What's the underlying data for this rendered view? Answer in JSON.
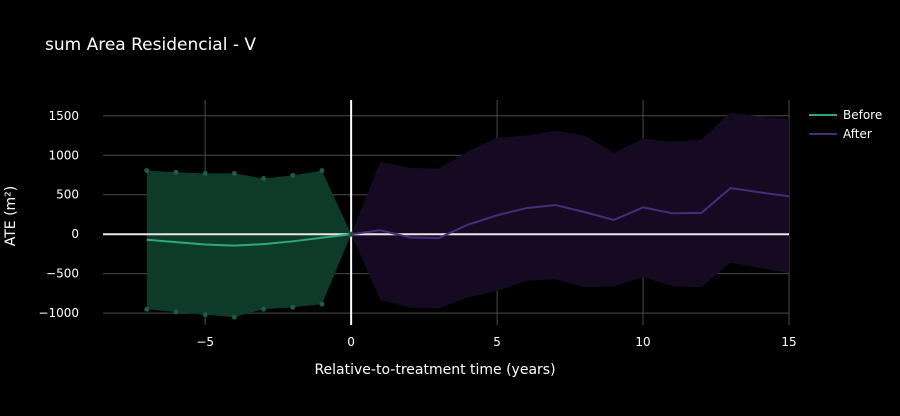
{
  "chart_data": {
    "type": "line",
    "title": "sum Area Residencial - V",
    "xlabel": "Relative-to-treatment time (years)",
    "ylabel": "ATE (m²)",
    "xlim": [
      -8.5,
      15
    ],
    "ylim": [
      -1150,
      1700
    ],
    "x_ticks": [
      -5,
      0,
      5,
      10,
      15
    ],
    "x_tick_labels": [
      "−5",
      "0",
      "5",
      "10",
      "15"
    ],
    "y_ticks": [
      -1000,
      -500,
      0,
      500,
      1000,
      1500
    ],
    "y_tick_labels": [
      "−1000",
      "−500",
      "0",
      "500",
      "1000",
      "1500"
    ],
    "grid": true,
    "legend_position": "top-right",
    "treatment_line_x": 0,
    "series": [
      {
        "name": "Before",
        "color": "#2ca87a",
        "fill_color": "#0e3a2a",
        "x": [
          -7,
          -6,
          -5,
          -4,
          -3,
          -2,
          -1,
          0
        ],
        "y": [
          -70,
          -100,
          -130,
          -145,
          -125,
          -90,
          -45,
          0
        ],
        "upper": [
          805,
          785,
          770,
          770,
          705,
          745,
          805,
          0
        ],
        "lower": [
          -950,
          -985,
          -1020,
          -1050,
          -950,
          -925,
          -885,
          0
        ],
        "markers": true
      },
      {
        "name": "After",
        "color": "#4a2a7a",
        "fill_color": "#150a22",
        "x": [
          0,
          1,
          2,
          3,
          4,
          5,
          6,
          7,
          8,
          9,
          10,
          11,
          12,
          13,
          14,
          15
        ],
        "y": [
          0,
          50,
          -40,
          -50,
          120,
          240,
          330,
          370,
          280,
          180,
          340,
          265,
          270,
          585,
          530,
          480
        ],
        "upper": [
          0,
          920,
          840,
          830,
          1050,
          1220,
          1250,
          1310,
          1250,
          1030,
          1210,
          1170,
          1200,
          1540,
          1490,
          1460
        ],
        "lower": [
          0,
          -830,
          -930,
          -940,
          -800,
          -720,
          -590,
          -570,
          -670,
          -660,
          -540,
          -660,
          -670,
          -360,
          -430,
          -490
        ],
        "markers": false
      }
    ]
  }
}
